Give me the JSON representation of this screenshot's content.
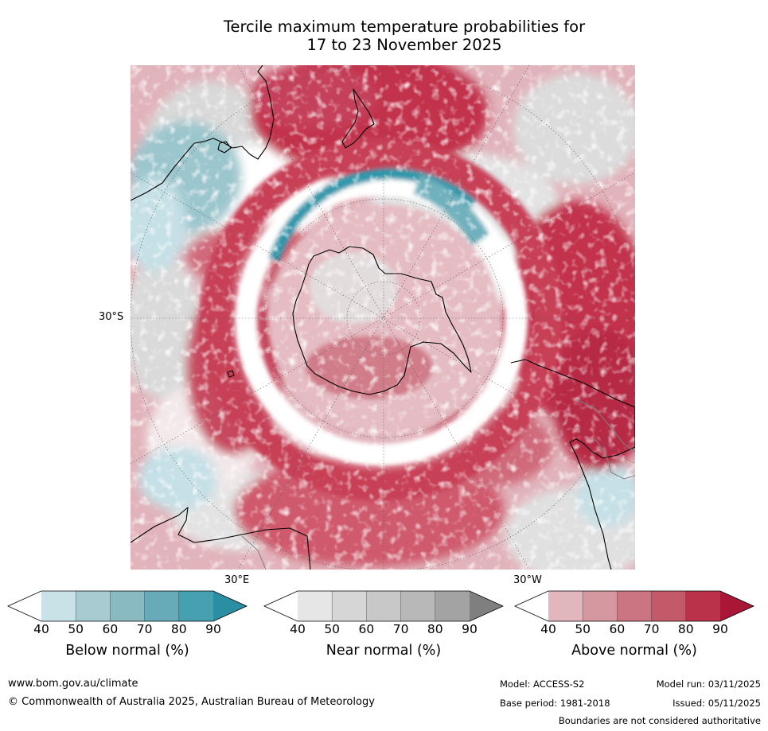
{
  "title_line1": "Tercile maximum temperature probabilities for",
  "title_line2": "17 to 23 November 2025",
  "map": {
    "lat_label": "30°S",
    "lon_label_east": "30°E",
    "lon_label_west": "30°W",
    "colors": {
      "ocean_white": "#ffffff",
      "near_grey": "#d9d9d9",
      "below_light": "#c5e0e6",
      "below_mid": "#8cbcc4",
      "below_dark": "#2f97ab",
      "above_light": "#e1b3ba",
      "above_mid": "#cf6a7a",
      "above_dark": "#c2334c",
      "coast": "#000000",
      "border": "#808080",
      "graticule": "#555555"
    }
  },
  "colorbars": [
    {
      "name": "below",
      "label": "Below normal (%)",
      "ticks": [
        "40",
        "50",
        "60",
        "70",
        "80",
        "90"
      ],
      "colors": [
        "#ffffff",
        "#c9e2e8",
        "#a8cbd1",
        "#89b9c1",
        "#67abb8",
        "#46a0b0",
        "#2b8fa4"
      ]
    },
    {
      "name": "near",
      "label": "Near normal (%)",
      "ticks": [
        "40",
        "50",
        "60",
        "70",
        "80",
        "90"
      ],
      "colors": [
        "#ffffff",
        "#e6e6e6",
        "#d6d6d6",
        "#c8c8c8",
        "#b8b8b8",
        "#a3a3a3",
        "#7f7f7f"
      ]
    },
    {
      "name": "above",
      "label": "Above normal (%)",
      "ticks": [
        "40",
        "50",
        "60",
        "70",
        "80",
        "90"
      ],
      "colors": [
        "#ffffff",
        "#e1b6bd",
        "#d598a1",
        "#ca7581",
        "#c25a69",
        "#bb3149",
        "#a91636"
      ]
    }
  ],
  "footer": {
    "url": "www.bom.gov.au/climate",
    "copyright": "© Commonwealth of Australia 2025, Australian Bureau of Meteorology",
    "model": "Model: ACCESS-S2",
    "base_period": "Base period: 1981-2018",
    "model_run": "Model run: 03/11/2025",
    "issued": "Issued: 05/11/2025",
    "disclaimer": "Boundaries are not considered authoritative"
  }
}
